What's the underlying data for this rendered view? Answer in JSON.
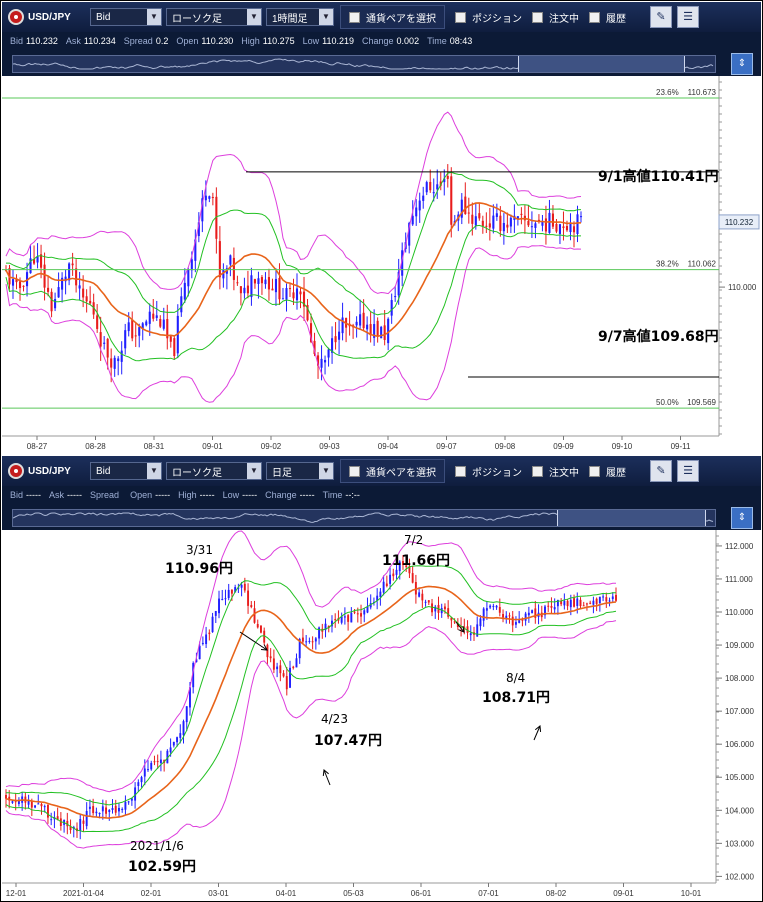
{
  "panels": [
    {
      "toolbar": {
        "pair": "USD/JPY",
        "price_type": "Bid",
        "chart_type": "ローソク足",
        "timeframe": "1時間足",
        "pair_select": "通貨ペアを選択",
        "check_position": "ポジション",
        "check_order": "注文中",
        "check_history": "履歴"
      },
      "quote": {
        "bid_label": "Bid",
        "bid": "110.232",
        "ask_label": "Ask",
        "ask": "110.234",
        "spread_label": "Spread",
        "spread": "0.2",
        "open_label": "Open",
        "open": "110.230",
        "high_label": "High",
        "high": "110.275",
        "low_label": "Low",
        "low": "110.219",
        "change_label": "Change",
        "change": "0.002",
        "time_label": "Time",
        "time": "08:43"
      },
      "navigator": {
        "selection_start": 0.72,
        "selection_end": 0.955
      }
    },
    {
      "toolbar": {
        "pair": "USD/JPY",
        "price_type": "Bid",
        "chart_type": "ローソク足",
        "timeframe": "日足",
        "pair_select": "通貨ペアを選択",
        "check_position": "ポジション",
        "check_order": "注文中",
        "check_history": "履歴"
      },
      "quote": {
        "bid_label": "Bid",
        "bid": "-----",
        "ask_label": "Ask",
        "ask": "-----",
        "spread_label": "Spread",
        "spread": "",
        "open_label": "Open",
        "open": "-----",
        "high_label": "High",
        "high": "-----",
        "low_label": "Low",
        "low": "-----",
        "change_label": "Change",
        "change": "-----",
        "time_label": "Time",
        "time": "--:--"
      },
      "navigator": {
        "selection_start": 0.775,
        "selection_end": 0.985
      }
    }
  ],
  "chart_data": [
    {
      "type": "candlestick",
      "timeframe": "1時間足",
      "x_ticks": [
        "08-27",
        "08-28",
        "08-31",
        "09-01",
        "09-02",
        "09-03",
        "09-04",
        "09-07",
        "09-08",
        "09-09",
        "09-10",
        "09-11"
      ],
      "y_ticks": [
        "110.000"
      ],
      "ylim": [
        109.47,
        110.73
      ],
      "current_price": {
        "label": "110.232",
        "value": 110.232
      },
      "fib_levels": [
        {
          "label": "23.6%",
          "value_label": "110.673",
          "value": 110.673
        },
        {
          "label": "38.2%",
          "value_label": "110.062",
          "value": 110.062
        },
        {
          "label": "50.0%",
          "value_label": "109.569",
          "value": 109.569
        }
      ],
      "annotations": [
        {
          "text": "9/1高値110.41円",
          "value": 110.41
        },
        {
          "text": "9/7高値109.68円",
          "value": 109.68
        }
      ],
      "colors": {
        "up": "#1f1fff",
        "down": "#e81c1c",
        "ma": "#e8641a",
        "band1": "#22c022",
        "band2": "#dd3fdd",
        "fib": "#5ac85a"
      },
      "close_path": [
        [
          0,
          110.05
        ],
        [
          0.02,
          109.98
        ],
        [
          0.05,
          110.12
        ],
        [
          0.08,
          109.93
        ],
        [
          0.11,
          110.08
        ],
        [
          0.13,
          109.96
        ],
        [
          0.15,
          109.93
        ],
        [
          0.17,
          109.78
        ],
        [
          0.19,
          109.73
        ],
        [
          0.21,
          109.85
        ],
        [
          0.23,
          109.83
        ],
        [
          0.25,
          109.9
        ],
        [
          0.27,
          109.88
        ],
        [
          0.29,
          109.75
        ],
        [
          0.31,
          110.02
        ],
        [
          0.33,
          110.18
        ],
        [
          0.35,
          110.38
        ],
        [
          0.36,
          110.32
        ],
        [
          0.37,
          110.02
        ],
        [
          0.39,
          110.08
        ],
        [
          0.41,
          109.95
        ],
        [
          0.43,
          110.05
        ],
        [
          0.45,
          110.03
        ],
        [
          0.47,
          110.0
        ],
        [
          0.49,
          109.96
        ],
        [
          0.51,
          110.02
        ],
        [
          0.52,
          109.93
        ],
        [
          0.53,
          109.8
        ],
        [
          0.545,
          109.7
        ],
        [
          0.56,
          109.75
        ],
        [
          0.58,
          109.88
        ],
        [
          0.6,
          109.83
        ],
        [
          0.62,
          109.88
        ],
        [
          0.64,
          109.85
        ],
        [
          0.66,
          109.83
        ],
        [
          0.68,
          110.02
        ],
        [
          0.7,
          110.22
        ],
        [
          0.72,
          110.33
        ],
        [
          0.74,
          110.36
        ],
        [
          0.76,
          110.36
        ],
        [
          0.77,
          110.42
        ],
        [
          0.775,
          110.2
        ],
        [
          0.79,
          110.3
        ],
        [
          0.81,
          110.25
        ],
        [
          0.83,
          110.23
        ]
      ]
    },
    {
      "type": "candlestick",
      "timeframe": "日足",
      "x_ticks": [
        "12-01",
        "2021-01-04",
        "02-01",
        "03-01",
        "04-01",
        "05-03",
        "06-01",
        "07-01",
        "08-02",
        "09-01",
        "10-01"
      ],
      "y_ticks": [
        "112.000",
        "111.000",
        "110.000",
        "109.000",
        "108.000",
        "107.000",
        "106.000",
        "105.000",
        "104.000",
        "103.000",
        "102.000"
      ],
      "ylim": [
        101.8,
        112.3
      ],
      "annotations": [
        {
          "date": "3/31",
          "price": "110.96円",
          "value": 110.96
        },
        {
          "date": "7/2",
          "price": "111.66円",
          "value": 111.66
        },
        {
          "date": "4/23",
          "price": "107.47円",
          "value": 107.47
        },
        {
          "date": "8/4",
          "price": "108.71円",
          "value": 108.71
        },
        {
          "date": "2021/1/6",
          "price": "102.59円",
          "value": 102.59
        }
      ],
      "colors": {
        "up": "#1f1fff",
        "down": "#e81c1c",
        "ma": "#e8641a",
        "band1": "#22c022",
        "band2": "#dd3fdd"
      },
      "close_path": [
        [
          0,
          104.4
        ],
        [
          0.05,
          104.2
        ],
        [
          0.08,
          103.8
        ],
        [
          0.11,
          103.3
        ],
        [
          0.14,
          104.0
        ],
        [
          0.17,
          104.0
        ],
        [
          0.2,
          104.2
        ],
        [
          0.23,
          105.2
        ],
        [
          0.26,
          105.6
        ],
        [
          0.29,
          106.6
        ],
        [
          0.31,
          108.6
        ],
        [
          0.33,
          109.3
        ],
        [
          0.35,
          110.3
        ],
        [
          0.37,
          110.6
        ],
        [
          0.39,
          110.7
        ],
        [
          0.41,
          109.6
        ],
        [
          0.44,
          108.3
        ],
        [
          0.46,
          107.8
        ],
        [
          0.48,
          109.0
        ],
        [
          0.5,
          109.2
        ],
        [
          0.53,
          109.7
        ],
        [
          0.55,
          109.7
        ],
        [
          0.58,
          109.9
        ],
        [
          0.6,
          110.3
        ],
        [
          0.62,
          110.8
        ],
        [
          0.64,
          111.4
        ],
        [
          0.655,
          111.5
        ],
        [
          0.67,
          110.7
        ],
        [
          0.7,
          110.1
        ],
        [
          0.73,
          109.9
        ],
        [
          0.76,
          109.2
        ],
        [
          0.77,
          109.5
        ],
        [
          0.79,
          110.2
        ],
        [
          0.81,
          110.0
        ],
        [
          0.83,
          109.7
        ],
        [
          0.85,
          109.9
        ],
        [
          0.87,
          109.9
        ],
        [
          0.89,
          110.1
        ],
        [
          0.9,
          110.3
        ]
      ]
    }
  ]
}
